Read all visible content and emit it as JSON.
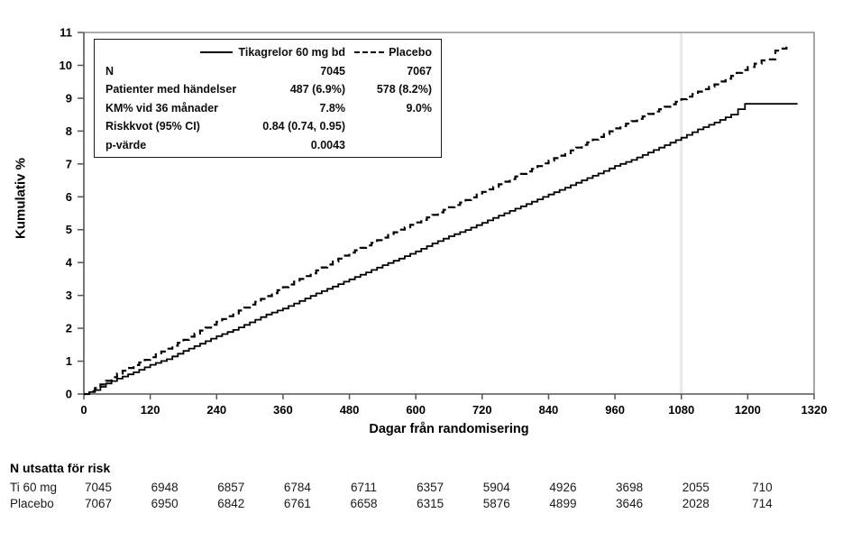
{
  "chart_data": {
    "type": "line",
    "title": "",
    "xlabel": "Dagar från randomisering",
    "ylabel": "Kumulativ %",
    "xlim": [
      0,
      1320
    ],
    "ylim": [
      0,
      11
    ],
    "x_ticks": [
      0,
      120,
      240,
      360,
      480,
      600,
      720,
      840,
      960,
      1080,
      1200,
      1320
    ],
    "y_ticks": [
      0,
      1,
      2,
      3,
      4,
      5,
      6,
      7,
      8,
      9,
      10,
      11
    ],
    "grid": false,
    "reference_line_x": 1080,
    "legend_position": "top-left-box",
    "series": [
      {
        "name": "Tikagrelor 60 mg bd",
        "style": "solid",
        "color": "#000000",
        "points": [
          [
            0,
            0
          ],
          [
            20,
            0.12
          ],
          [
            40,
            0.32
          ],
          [
            60,
            0.47
          ],
          [
            90,
            0.66
          ],
          [
            120,
            0.89
          ],
          [
            150,
            1.06
          ],
          [
            180,
            1.31
          ],
          [
            210,
            1.53
          ],
          [
            240,
            1.76
          ],
          [
            270,
            1.95
          ],
          [
            300,
            2.18
          ],
          [
            330,
            2.42
          ],
          [
            360,
            2.6
          ],
          [
            390,
            2.83
          ],
          [
            420,
            3.06
          ],
          [
            450,
            3.27
          ],
          [
            480,
            3.49
          ],
          [
            510,
            3.7
          ],
          [
            540,
            3.92
          ],
          [
            570,
            4.12
          ],
          [
            600,
            4.34
          ],
          [
            630,
            4.58
          ],
          [
            660,
            4.8
          ],
          [
            690,
            4.99
          ],
          [
            720,
            5.21
          ],
          [
            750,
            5.43
          ],
          [
            780,
            5.64
          ],
          [
            810,
            5.85
          ],
          [
            840,
            6.07
          ],
          [
            870,
            6.28
          ],
          [
            900,
            6.5
          ],
          [
            930,
            6.71
          ],
          [
            960,
            6.94
          ],
          [
            990,
            7.12
          ],
          [
            1020,
            7.35
          ],
          [
            1050,
            7.57
          ],
          [
            1080,
            7.8
          ],
          [
            1110,
            8.05
          ],
          [
            1140,
            8.26
          ],
          [
            1170,
            8.5
          ],
          [
            1195,
            8.83
          ],
          [
            1290,
            8.83
          ]
        ]
      },
      {
        "name": "Placebo",
        "style": "dashed",
        "color": "#000000",
        "points": [
          [
            0,
            0
          ],
          [
            20,
            0.18
          ],
          [
            40,
            0.4
          ],
          [
            60,
            0.62
          ],
          [
            90,
            0.88
          ],
          [
            120,
            1.12
          ],
          [
            150,
            1.38
          ],
          [
            180,
            1.65
          ],
          [
            210,
            1.93
          ],
          [
            240,
            2.2
          ],
          [
            270,
            2.45
          ],
          [
            300,
            2.72
          ],
          [
            330,
            2.98
          ],
          [
            360,
            3.25
          ],
          [
            390,
            3.5
          ],
          [
            420,
            3.76
          ],
          [
            450,
            4.03
          ],
          [
            480,
            4.3
          ],
          [
            510,
            4.52
          ],
          [
            540,
            4.76
          ],
          [
            570,
            5.0
          ],
          [
            600,
            5.22
          ],
          [
            630,
            5.45
          ],
          [
            660,
            5.68
          ],
          [
            690,
            5.9
          ],
          [
            720,
            6.15
          ],
          [
            750,
            6.38
          ],
          [
            780,
            6.62
          ],
          [
            810,
            6.85
          ],
          [
            840,
            7.1
          ],
          [
            870,
            7.33
          ],
          [
            900,
            7.58
          ],
          [
            930,
            7.82
          ],
          [
            960,
            8.08
          ],
          [
            990,
            8.3
          ],
          [
            1020,
            8.52
          ],
          [
            1050,
            8.74
          ],
          [
            1080,
            8.97
          ],
          [
            1110,
            9.2
          ],
          [
            1140,
            9.42
          ],
          [
            1170,
            9.68
          ],
          [
            1200,
            9.95
          ],
          [
            1225,
            10.15
          ],
          [
            1240,
            10.18
          ],
          [
            1250,
            10.45
          ],
          [
            1270,
            10.57
          ]
        ]
      }
    ]
  },
  "legend_box": {
    "columns": [
      "Tikagrelor 60 mg bd",
      "Placebo"
    ],
    "rows": [
      {
        "label": "N",
        "tikagrelor": "7045",
        "placebo": "7067"
      },
      {
        "label": "Patienter med händelser",
        "tikagrelor": "487 (6.9%)",
        "placebo": "578 (8.2%)"
      },
      {
        "label": "KM% vid 36 månader",
        "tikagrelor": "7.8%",
        "placebo": "9.0%"
      },
      {
        "label": "Riskkvot (95% CI)",
        "tikagrelor": "0.84 (0.74, 0.95)",
        "placebo": ""
      },
      {
        "label": "p-värde",
        "tikagrelor": "0.0043",
        "placebo": ""
      }
    ]
  },
  "risk_table": {
    "title": "N utsatta för risk",
    "days": [
      0,
      120,
      240,
      360,
      480,
      600,
      720,
      840,
      960,
      1080,
      1200
    ],
    "rows": [
      {
        "label": "Ti 60 mg",
        "values": [
          "7045",
          "6948",
          "6857",
          "6784",
          "6711",
          "6357",
          "5904",
          "4926",
          "3698",
          "2055",
          "710"
        ]
      },
      {
        "label": "Placebo",
        "values": [
          "7067",
          "6950",
          "6842",
          "6761",
          "6658",
          "6315",
          "5876",
          "4899",
          "3646",
          "2028",
          "714"
        ]
      }
    ]
  },
  "colors": {
    "text": "#000000",
    "axis": "#555555",
    "frame": "#8f8f8f",
    "reference_line": "#e8e8e8",
    "background": "#ffffff"
  }
}
